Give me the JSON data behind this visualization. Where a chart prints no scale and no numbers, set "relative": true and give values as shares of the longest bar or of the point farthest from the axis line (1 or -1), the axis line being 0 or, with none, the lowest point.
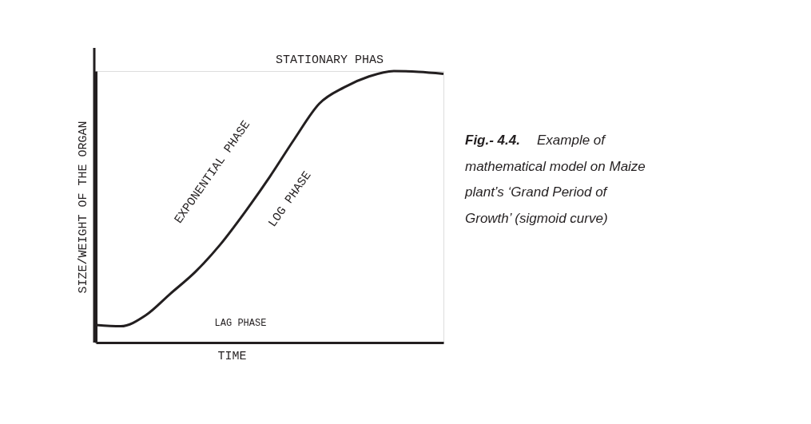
{
  "chart_data": {
    "type": "line",
    "relative": true,
    "xlabel": "TIME",
    "ylabel": "SIZE/WEIGHT OF THE ORGAN",
    "categories": [
      null,
      null,
      null,
      null,
      null,
      null,
      null,
      null,
      null,
      null,
      null,
      null,
      null,
      null,
      null
    ],
    "series": [
      {
        "color": "#231f20",
        "values": [
          0.065,
          0.06,
          0.1,
          0.18,
          0.26,
          0.36,
          0.48,
          0.61,
          0.75,
          0.88,
          0.94,
          0.98,
          1,
          0.997,
          0.99
        ]
      }
    ],
    "marker": "none",
    "line_style": "solid",
    "grid": false,
    "annotations": [
      "STATIONARY PHAS",
      "EXPONENTIAL PHASE",
      "LOG PHASE",
      "LAG PHASE",
      "Fig.- 4.4.",
      "Example of mathematical model on Maize plant’s ‘Grand Period of Growth’ (sigmoid curve)"
    ]
  }
}
